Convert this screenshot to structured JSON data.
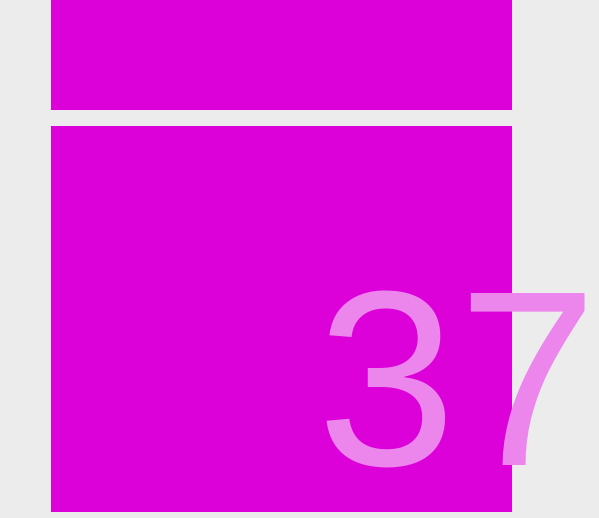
{
  "colors": {
    "background": "#ececec",
    "tile": "#dc00d9",
    "number_text": "#ec85ec"
  },
  "tiles": {
    "main": {
      "value": "37"
    }
  }
}
